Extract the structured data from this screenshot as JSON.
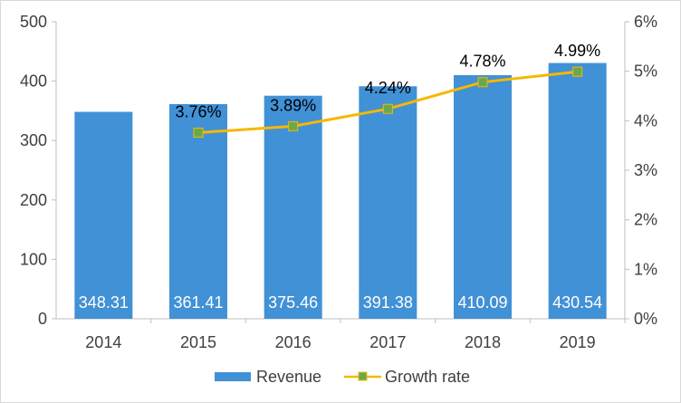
{
  "chart_data": {
    "type": "bar",
    "categories": [
      "2014",
      "2015",
      "2016",
      "2017",
      "2018",
      "2019"
    ],
    "series": [
      {
        "name": "Revenue",
        "type": "bar",
        "axis": "left",
        "color": "#4191d6",
        "values": [
          348.31,
          361.41,
          375.46,
          391.38,
          410.09,
          430.54
        ],
        "labels": [
          "348.31",
          "361.41",
          "375.46",
          "391.38",
          "410.09",
          "430.54"
        ]
      },
      {
        "name": "Growth rate",
        "type": "line",
        "axis": "right",
        "color": "#f5b800",
        "marker_color": "#6aa84f",
        "values": [
          null,
          3.76,
          3.89,
          4.24,
          4.78,
          4.99
        ],
        "labels": [
          "",
          "3.76%",
          "3.89%",
          "4.24%",
          "4.78%",
          "4.99%"
        ]
      }
    ],
    "y_left": {
      "range": [
        0,
        500
      ],
      "ticks": [
        "0",
        "100",
        "200",
        "300",
        "400",
        "500"
      ]
    },
    "y_right": {
      "range": [
        0,
        6
      ],
      "ticks": [
        "0%",
        "1%",
        "2%",
        "3%",
        "4%",
        "5%",
        "6%"
      ]
    },
    "legend": {
      "placement": "bottom",
      "items": [
        "Revenue",
        "Growth rate"
      ]
    },
    "grid": false
  }
}
